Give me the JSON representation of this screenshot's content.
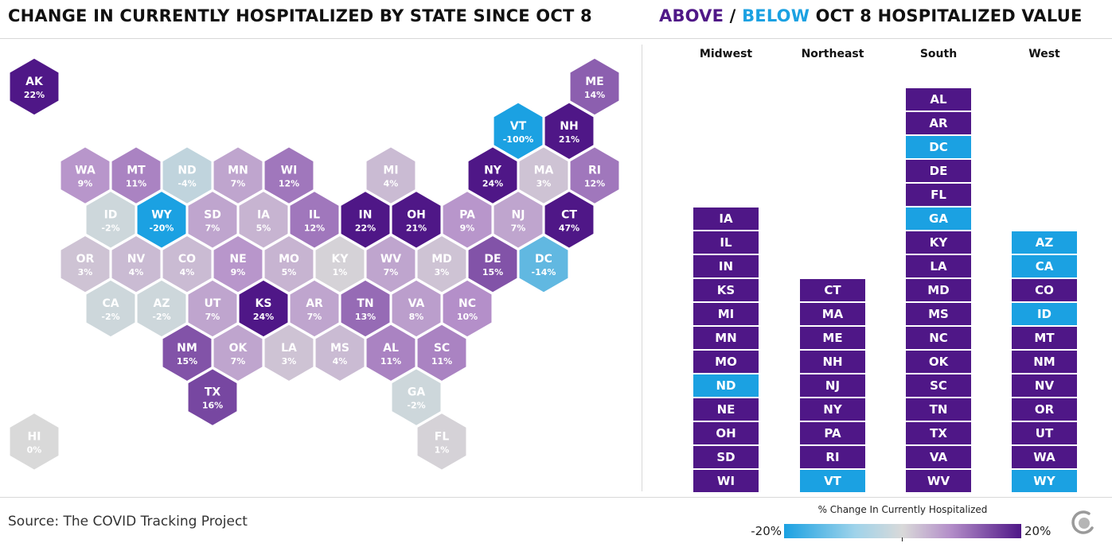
{
  "title_left": "CHANGE IN CURRENTLY HOSPITALIZED BY STATE SINCE OCT 8",
  "title_right": {
    "above": "ABOVE",
    "sep": " / ",
    "below": "BELOW",
    "rest": " OCT 8 HOSPITALIZED VALUE"
  },
  "colors": {
    "above": "#4f1787",
    "below": "#1ba1e2",
    "neutral": "#d9d9d9"
  },
  "map": {
    "states": [
      {
        "abbr": "AK",
        "pct": "22%",
        "value": 22,
        "row": 0,
        "col": 0
      },
      {
        "abbr": "ME",
        "pct": "14%",
        "value": 14,
        "row": 0,
        "col": 11
      },
      {
        "abbr": "VT",
        "pct": "-100%",
        "value": -100,
        "row": 1,
        "col": 9.5
      },
      {
        "abbr": "NH",
        "pct": "21%",
        "value": 21,
        "row": 1,
        "col": 10.5
      },
      {
        "abbr": "WA",
        "pct": "9%",
        "value": 9,
        "row": 2,
        "col": 1
      },
      {
        "abbr": "MT",
        "pct": "11%",
        "value": 11,
        "row": 2,
        "col": 2
      },
      {
        "abbr": "ND",
        "pct": "-4%",
        "value": -4,
        "row": 2,
        "col": 3
      },
      {
        "abbr": "MN",
        "pct": "7%",
        "value": 7,
        "row": 2,
        "col": 4
      },
      {
        "abbr": "WI",
        "pct": "12%",
        "value": 12,
        "row": 2,
        "col": 5
      },
      {
        "abbr": "MI",
        "pct": "4%",
        "value": 4,
        "row": 2,
        "col": 7
      },
      {
        "abbr": "NY",
        "pct": "24%",
        "value": 24,
        "row": 2,
        "col": 9
      },
      {
        "abbr": "MA",
        "pct": "3%",
        "value": 3,
        "row": 2,
        "col": 10
      },
      {
        "abbr": "RI",
        "pct": "12%",
        "value": 12,
        "row": 2,
        "col": 11
      },
      {
        "abbr": "ID",
        "pct": "-2%",
        "value": -2,
        "row": 3,
        "col": 1.5
      },
      {
        "abbr": "WY",
        "pct": "-20%",
        "value": -20,
        "row": 3,
        "col": 2.5
      },
      {
        "abbr": "SD",
        "pct": "7%",
        "value": 7,
        "row": 3,
        "col": 3.5
      },
      {
        "abbr": "IA",
        "pct": "5%",
        "value": 5,
        "row": 3,
        "col": 4.5
      },
      {
        "abbr": "IL",
        "pct": "12%",
        "value": 12,
        "row": 3,
        "col": 5.5
      },
      {
        "abbr": "IN",
        "pct": "22%",
        "value": 22,
        "row": 3,
        "col": 6.5
      },
      {
        "abbr": "OH",
        "pct": "21%",
        "value": 21,
        "row": 3,
        "col": 7.5
      },
      {
        "abbr": "PA",
        "pct": "9%",
        "value": 9,
        "row": 3,
        "col": 8.5
      },
      {
        "abbr": "NJ",
        "pct": "7%",
        "value": 7,
        "row": 3,
        "col": 9.5
      },
      {
        "abbr": "CT",
        "pct": "47%",
        "value": 47,
        "row": 3,
        "col": 10.5
      },
      {
        "abbr": "OR",
        "pct": "3%",
        "value": 3,
        "row": 4,
        "col": 1
      },
      {
        "abbr": "NV",
        "pct": "4%",
        "value": 4,
        "row": 4,
        "col": 2
      },
      {
        "abbr": "CO",
        "pct": "4%",
        "value": 4,
        "row": 4,
        "col": 3
      },
      {
        "abbr": "NE",
        "pct": "9%",
        "value": 9,
        "row": 4,
        "col": 4
      },
      {
        "abbr": "MO",
        "pct": "5%",
        "value": 5,
        "row": 4,
        "col": 5
      },
      {
        "abbr": "KY",
        "pct": "1%",
        "value": 1,
        "row": 4,
        "col": 6
      },
      {
        "abbr": "WV",
        "pct": "7%",
        "value": 7,
        "row": 4,
        "col": 7
      },
      {
        "abbr": "MD",
        "pct": "3%",
        "value": 3,
        "row": 4,
        "col": 8
      },
      {
        "abbr": "DE",
        "pct": "15%",
        "value": 15,
        "row": 4,
        "col": 9
      },
      {
        "abbr": "DC",
        "pct": "-14%",
        "value": -14,
        "row": 4,
        "col": 10
      },
      {
        "abbr": "CA",
        "pct": "-2%",
        "value": -2,
        "row": 5,
        "col": 1.5
      },
      {
        "abbr": "AZ",
        "pct": "-2%",
        "value": -2,
        "row": 5,
        "col": 2.5
      },
      {
        "abbr": "UT",
        "pct": "7%",
        "value": 7,
        "row": 5,
        "col": 3.5
      },
      {
        "abbr": "KS",
        "pct": "24%",
        "value": 24,
        "row": 5,
        "col": 4.5
      },
      {
        "abbr": "AR",
        "pct": "7%",
        "value": 7,
        "row": 5,
        "col": 5.5
      },
      {
        "abbr": "TN",
        "pct": "13%",
        "value": 13,
        "row": 5,
        "col": 6.5
      },
      {
        "abbr": "VA",
        "pct": "8%",
        "value": 8,
        "row": 5,
        "col": 7.5
      },
      {
        "abbr": "NC",
        "pct": "10%",
        "value": 10,
        "row": 5,
        "col": 8.5
      },
      {
        "abbr": "NM",
        "pct": "15%",
        "value": 15,
        "row": 6,
        "col": 3
      },
      {
        "abbr": "OK",
        "pct": "7%",
        "value": 7,
        "row": 6,
        "col": 4
      },
      {
        "abbr": "LA",
        "pct": "3%",
        "value": 3,
        "row": 6,
        "col": 5
      },
      {
        "abbr": "MS",
        "pct": "4%",
        "value": 4,
        "row": 6,
        "col": 6
      },
      {
        "abbr": "AL",
        "pct": "11%",
        "value": 11,
        "row": 6,
        "col": 7
      },
      {
        "abbr": "SC",
        "pct": "11%",
        "value": 11,
        "row": 6,
        "col": 8
      },
      {
        "abbr": "TX",
        "pct": "16%",
        "value": 16,
        "row": 7,
        "col": 3.5
      },
      {
        "abbr": "GA",
        "pct": "-2%",
        "value": -2,
        "row": 7,
        "col": 7.5
      },
      {
        "abbr": "HI",
        "pct": "0%",
        "value": 0,
        "row": 8,
        "col": 0
      },
      {
        "abbr": "FL",
        "pct": "1%",
        "value": 1,
        "row": 8,
        "col": 8
      }
    ]
  },
  "regions": [
    {
      "name": "Midwest",
      "bars": [
        {
          "abbr": "IA",
          "status": "above"
        },
        {
          "abbr": "IL",
          "status": "above"
        },
        {
          "abbr": "IN",
          "status": "above"
        },
        {
          "abbr": "KS",
          "status": "above"
        },
        {
          "abbr": "MI",
          "status": "above"
        },
        {
          "abbr": "MN",
          "status": "above"
        },
        {
          "abbr": "MO",
          "status": "above"
        },
        {
          "abbr": "ND",
          "status": "below"
        },
        {
          "abbr": "NE",
          "status": "above"
        },
        {
          "abbr": "OH",
          "status": "above"
        },
        {
          "abbr": "SD",
          "status": "above"
        },
        {
          "abbr": "WI",
          "status": "above"
        }
      ]
    },
    {
      "name": "Northeast",
      "bars": [
        {
          "abbr": "CT",
          "status": "above"
        },
        {
          "abbr": "MA",
          "status": "above"
        },
        {
          "abbr": "ME",
          "status": "above"
        },
        {
          "abbr": "NH",
          "status": "above"
        },
        {
          "abbr": "NJ",
          "status": "above"
        },
        {
          "abbr": "NY",
          "status": "above"
        },
        {
          "abbr": "PA",
          "status": "above"
        },
        {
          "abbr": "RI",
          "status": "above"
        },
        {
          "abbr": "VT",
          "status": "below"
        }
      ]
    },
    {
      "name": "South",
      "bars": [
        {
          "abbr": "AL",
          "status": "above"
        },
        {
          "abbr": "AR",
          "status": "above"
        },
        {
          "abbr": "DC",
          "status": "below"
        },
        {
          "abbr": "DE",
          "status": "above"
        },
        {
          "abbr": "FL",
          "status": "above"
        },
        {
          "abbr": "GA",
          "status": "below"
        },
        {
          "abbr": "KY",
          "status": "above"
        },
        {
          "abbr": "LA",
          "status": "above"
        },
        {
          "abbr": "MD",
          "status": "above"
        },
        {
          "abbr": "MS",
          "status": "above"
        },
        {
          "abbr": "NC",
          "status": "above"
        },
        {
          "abbr": "OK",
          "status": "above"
        },
        {
          "abbr": "SC",
          "status": "above"
        },
        {
          "abbr": "TN",
          "status": "above"
        },
        {
          "abbr": "TX",
          "status": "above"
        },
        {
          "abbr": "VA",
          "status": "above"
        },
        {
          "abbr": "WV",
          "status": "above"
        }
      ]
    },
    {
      "name": "West",
      "bars": [
        {
          "abbr": "AZ",
          "status": "below"
        },
        {
          "abbr": "CA",
          "status": "below"
        },
        {
          "abbr": "CO",
          "status": "above"
        },
        {
          "abbr": "ID",
          "status": "below"
        },
        {
          "abbr": "MT",
          "status": "above"
        },
        {
          "abbr": "NM",
          "status": "above"
        },
        {
          "abbr": "NV",
          "status": "above"
        },
        {
          "abbr": "OR",
          "status": "above"
        },
        {
          "abbr": "UT",
          "status": "above"
        },
        {
          "abbr": "WA",
          "status": "above"
        },
        {
          "abbr": "WY",
          "status": "below"
        }
      ]
    }
  ],
  "legend": {
    "title": "% Change In Currently Hospitalized",
    "min_label": "-20%",
    "max_label": "20%",
    "min": -20,
    "max": 20
  },
  "source": "Source: The COVID Tracking Project",
  "logo_icon": "covid-tracking-project-logo-icon"
}
